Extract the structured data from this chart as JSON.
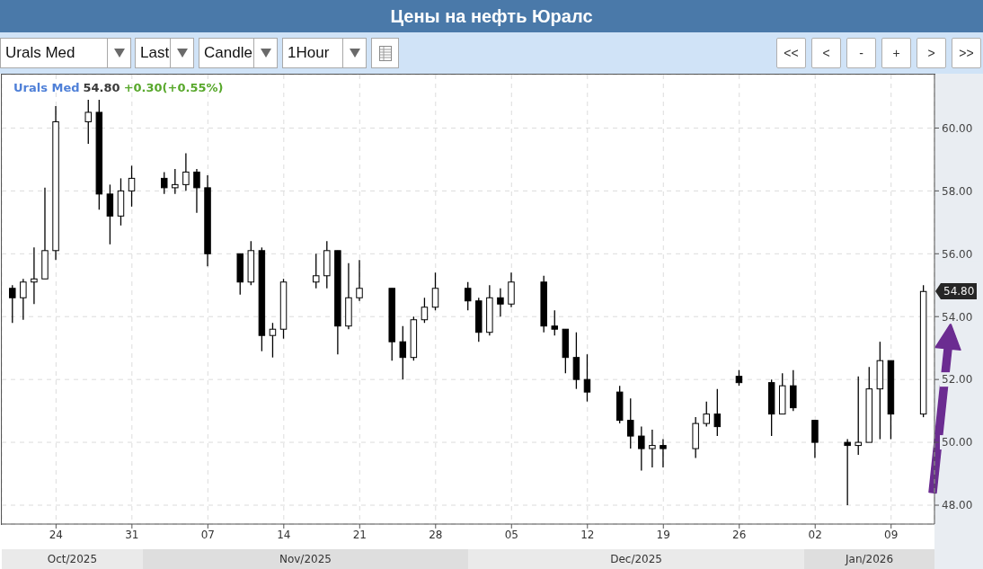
{
  "chart_data": {
    "type": "candlestick",
    "title": "Цены на нефть Юралс",
    "x": [
      "2025-10-20",
      "2025-10-21",
      "2025-10-22",
      "2025-10-23",
      "2025-10-24",
      "2025-10-27",
      "2025-10-28",
      "2025-10-29",
      "2025-10-30",
      "2025-10-31",
      "2025-11-03",
      "2025-11-04",
      "2025-11-05",
      "2025-11-06",
      "2025-11-07",
      "2025-11-10",
      "2025-11-11",
      "2025-11-12",
      "2025-11-13",
      "2025-11-14",
      "2025-11-17",
      "2025-11-18",
      "2025-11-19",
      "2025-11-20",
      "2025-11-21",
      "2025-11-24",
      "2025-11-25",
      "2025-11-26",
      "2025-11-27",
      "2025-11-28",
      "2025-12-01",
      "2025-12-02",
      "2025-12-03",
      "2025-12-04",
      "2025-12-05",
      "2025-12-08",
      "2025-12-09",
      "2025-12-10",
      "2025-12-11",
      "2025-12-12",
      "2025-12-15",
      "2025-12-16",
      "2025-12-17",
      "2025-12-18",
      "2025-12-19",
      "2025-12-22",
      "2025-12-23",
      "2025-12-24",
      "2025-12-26",
      "2025-12-29",
      "2025-12-30",
      "2025-12-31",
      "2026-01-02",
      "2026-01-05",
      "2026-01-06",
      "2026-01-07",
      "2026-01-08",
      "2026-01-09",
      "2026-01-12"
    ],
    "ohlc": [
      [
        54.9,
        55.0,
        53.8,
        54.6
      ],
      [
        54.6,
        55.2,
        53.9,
        55.1
      ],
      [
        55.1,
        56.2,
        54.4,
        55.2
      ],
      [
        55.2,
        58.1,
        55.2,
        56.1
      ],
      [
        56.1,
        60.7,
        55.8,
        60.2
      ],
      [
        60.2,
        60.9,
        59.5,
        60.5
      ],
      [
        60.5,
        60.9,
        57.4,
        57.9
      ],
      [
        57.9,
        58.2,
        56.3,
        57.2
      ],
      [
        57.2,
        58.4,
        56.9,
        58.0
      ],
      [
        58.0,
        58.8,
        57.5,
        58.4
      ],
      [
        58.4,
        58.6,
        57.9,
        58.1
      ],
      [
        58.1,
        58.7,
        57.9,
        58.2
      ],
      [
        58.2,
        59.2,
        58.0,
        58.6
      ],
      [
        58.6,
        58.7,
        57.3,
        58.1
      ],
      [
        58.1,
        58.5,
        55.6,
        56.0
      ],
      [
        56.0,
        56.0,
        54.7,
        55.1
      ],
      [
        55.1,
        56.4,
        55.0,
        56.1
      ],
      [
        56.1,
        56.2,
        52.9,
        53.4
      ],
      [
        53.4,
        53.8,
        52.7,
        53.6
      ],
      [
        53.6,
        55.2,
        53.3,
        55.1
      ],
      [
        55.1,
        56.0,
        54.9,
        55.3
      ],
      [
        55.3,
        56.4,
        54.9,
        56.1
      ],
      [
        56.1,
        56.1,
        52.8,
        53.7
      ],
      [
        53.7,
        55.7,
        53.6,
        54.6
      ],
      [
        54.6,
        55.8,
        54.5,
        54.9
      ],
      [
        54.9,
        54.9,
        52.6,
        53.2
      ],
      [
        53.2,
        53.7,
        52.0,
        52.7
      ],
      [
        52.7,
        54.0,
        52.6,
        53.9
      ],
      [
        53.9,
        54.6,
        53.8,
        54.3
      ],
      [
        54.3,
        55.4,
        54.2,
        54.9
      ],
      [
        54.9,
        55.1,
        54.2,
        54.5
      ],
      [
        54.5,
        54.6,
        53.2,
        53.5
      ],
      [
        53.5,
        55.0,
        53.4,
        54.6
      ],
      [
        54.6,
        54.9,
        54.0,
        54.4
      ],
      [
        54.4,
        55.4,
        54.3,
        55.1
      ],
      [
        55.1,
        55.3,
        53.5,
        53.7
      ],
      [
        53.7,
        54.2,
        53.4,
        53.6
      ],
      [
        53.6,
        53.6,
        52.2,
        52.7
      ],
      [
        52.7,
        53.5,
        51.7,
        52.0
      ],
      [
        52.0,
        52.8,
        51.3,
        51.6
      ],
      [
        51.6,
        51.8,
        50.6,
        50.7
      ],
      [
        50.7,
        51.4,
        49.8,
        50.2
      ],
      [
        50.2,
        50.5,
        49.1,
        49.8
      ],
      [
        49.8,
        50.4,
        49.2,
        49.9
      ],
      [
        49.9,
        50.1,
        49.2,
        49.8
      ],
      [
        49.8,
        50.8,
        49.5,
        50.6
      ],
      [
        50.6,
        51.3,
        50.5,
        50.9
      ],
      [
        50.9,
        51.7,
        50.2,
        50.5
      ],
      [
        52.1,
        52.3,
        51.8,
        51.9
      ],
      [
        51.9,
        52.0,
        50.2,
        50.9
      ],
      [
        50.9,
        52.2,
        50.9,
        51.8
      ],
      [
        51.8,
        52.3,
        51.0,
        51.1
      ],
      [
        50.7,
        50.7,
        49.5,
        50.0
      ],
      [
        50.0,
        50.1,
        48.0,
        49.9
      ],
      [
        49.9,
        52.1,
        49.6,
        50.0
      ],
      [
        50.0,
        52.4,
        50.0,
        51.7
      ],
      [
        51.7,
        53.2,
        50.1,
        52.6
      ],
      [
        52.6,
        52.6,
        50.1,
        50.9
      ],
      [
        50.9,
        55.0,
        50.8,
        54.8
      ]
    ],
    "color": "#000000",
    "xlim": [
      "2025-10-19",
      "2026-01-13"
    ],
    "xticks": [
      {
        "value": "2025-10-24",
        "label": "24"
      },
      {
        "value": "2025-10-31",
        "label": "31"
      },
      {
        "value": "2025-11-07",
        "label": "07"
      },
      {
        "value": "2025-11-14",
        "label": "14"
      },
      {
        "value": "2025-11-21",
        "label": "21"
      },
      {
        "value": "2025-11-28",
        "label": "28"
      },
      {
        "value": "2025-12-05",
        "label": "05"
      },
      {
        "value": "2025-12-12",
        "label": "12"
      },
      {
        "value": "2025-12-19",
        "label": "19"
      },
      {
        "value": "2025-12-26",
        "label": "26"
      },
      {
        "value": "2026-01-02",
        "label": "02"
      },
      {
        "value": "2026-01-09",
        "label": "09"
      }
    ],
    "ylim": [
      47.4,
      61.7
    ],
    "yticks": [
      {
        "value": 48,
        "label": "48.00"
      },
      {
        "value": 50,
        "label": "50.00"
      },
      {
        "value": 52,
        "label": "52.00"
      },
      {
        "value": 54,
        "label": "54.00"
      },
      {
        "value": 56,
        "label": "56.00"
      },
      {
        "value": 58,
        "label": "58.00"
      },
      {
        "value": 60,
        "label": "60.00"
      }
    ],
    "grid": true,
    "annotations": [
      "Urals Med",
      "Last",
      "Candle",
      "1Hour",
      "<<",
      "<",
      "-",
      "+",
      ">",
      ">>",
      "Urals Med",
      "54.80",
      "+0.30(+0.55%)",
      "Oct/2025",
      "Nov/2025",
      "Dec/2025",
      "Jan/2026",
      "54.80"
    ]
  }
}
